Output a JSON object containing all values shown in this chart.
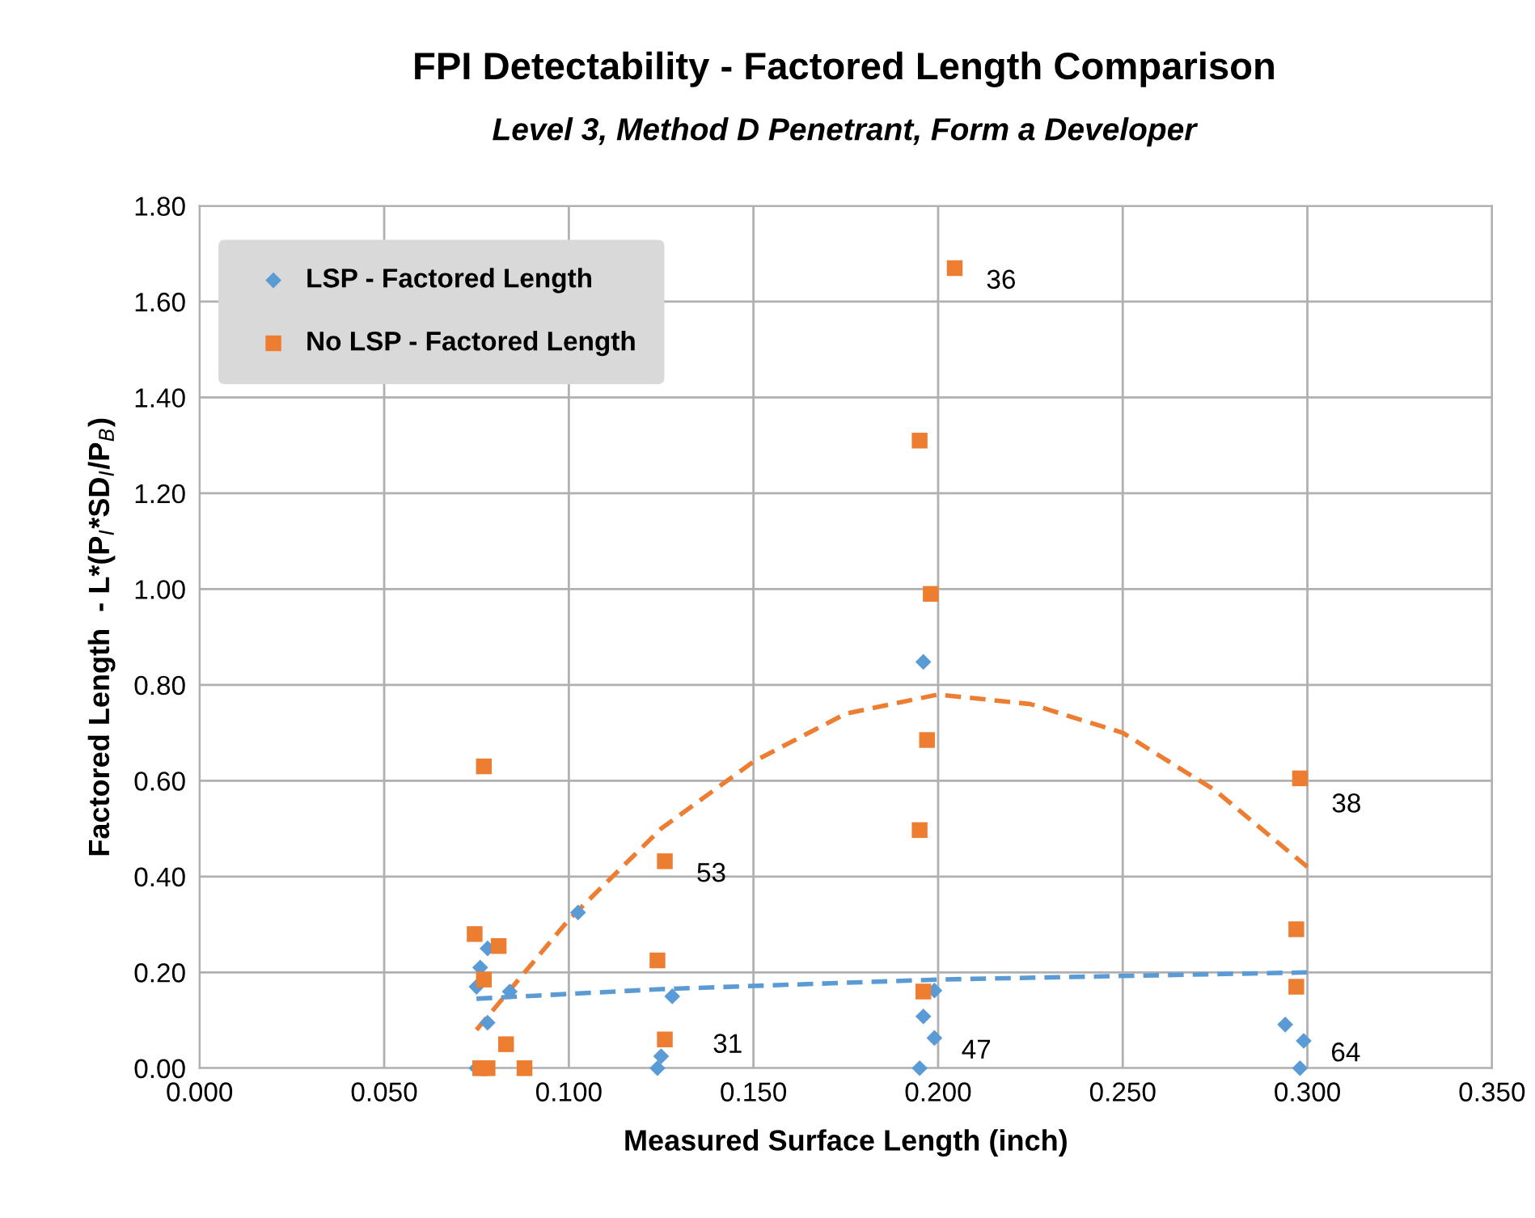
{
  "chart_data": {
    "type": "scatter",
    "title": "FPI Detectability - Factored Length Comparison",
    "subtitle": "Level 3, Method D Penetrant, Form a Developer",
    "xlabel": "Measured Surface Length (inch)",
    "ylabel": "Factored Length  - L*(P$_{I}$*SD$_{I}$/P$_{B}$)",
    "xlim": [
      0,
      0.35
    ],
    "xticks": [
      {
        "value": 0,
        "label": "0.000"
      },
      {
        "value": 0.05,
        "label": "0.050"
      },
      {
        "value": 0.1,
        "label": "0.100"
      },
      {
        "value": 0.15,
        "label": "0.150"
      },
      {
        "value": 0.2,
        "label": "0.200"
      },
      {
        "value": 0.25,
        "label": "0.250"
      },
      {
        "value": 0.3,
        "label": "0.300"
      },
      {
        "value": 0.35,
        "label": "0.350"
      }
    ],
    "ylim": [
      0,
      1.8
    ],
    "yticks": [
      {
        "value": 0,
        "label": "0.00"
      },
      {
        "value": 0.2,
        "label": "0.20"
      },
      {
        "value": 0.4,
        "label": "0.40"
      },
      {
        "value": 0.6,
        "label": "0.60"
      },
      {
        "value": 0.8,
        "label": "0.80"
      },
      {
        "value": 1.0,
        "label": "1.00"
      },
      {
        "value": 1.2,
        "label": "1.20"
      },
      {
        "value": 1.4,
        "label": "1.40"
      },
      {
        "value": 1.6,
        "label": "1.60"
      },
      {
        "value": 1.8,
        "label": "1.80"
      }
    ],
    "grid": true,
    "legend": "top left",
    "series": [
      {
        "name": "LSP - Factored Length",
        "marker": "diamond",
        "color": "#5b9bd5",
        "x": [
          0.075,
          0.076,
          0.078,
          0.078,
          0.075,
          0.084,
          0.1025,
          0.128,
          0.125,
          0.124,
          0.196,
          0.196,
          0.199,
          0.199,
          0.195,
          0.294,
          0.299,
          0.298
        ],
        "values": [
          0.17,
          0.21,
          0.25,
          0.095,
          0.0,
          0.16,
          0.325,
          0.15,
          0.025,
          0.0,
          0.848,
          0.108,
          0.162,
          0.063,
          0.0,
          0.091,
          0.057,
          0.0
        ]
      },
      {
        "name": "No LSP - Factored Length",
        "marker": "square",
        "color": "#ed7d31",
        "x": [
          0.0745,
          0.077,
          0.081,
          0.077,
          0.083,
          0.076,
          0.078,
          0.088,
          0.124,
          0.126,
          0.126,
          0.195,
          0.2045,
          0.198,
          0.197,
          0.195,
          0.196,
          0.298,
          0.297,
          0.297
        ],
        "values": [
          0.28,
          0.63,
          0.255,
          0.185,
          0.05,
          0.0,
          0.0,
          0.0,
          0.225,
          0.432,
          0.06,
          1.31,
          1.67,
          0.99,
          0.685,
          0.497,
          0.16,
          0.605,
          0.29,
          0.17
        ]
      },
      {
        "type": "line",
        "line_style": "dashed",
        "marker": "none",
        "color": "#ed7d31",
        "x": [
          0.075,
          0.1,
          0.125,
          0.15,
          0.175,
          0.2,
          0.225,
          0.25,
          0.275,
          0.3
        ],
        "values": [
          0.08,
          0.31,
          0.5,
          0.64,
          0.74,
          0.78,
          0.76,
          0.7,
          0.58,
          0.42
        ]
      },
      {
        "type": "line",
        "line_style": "dashed",
        "marker": "none",
        "color": "#5b9bd5",
        "x": [
          0.075,
          0.125,
          0.2,
          0.3
        ],
        "values": [
          0.145,
          0.165,
          0.185,
          0.2
        ]
      }
    ],
    "annotations": [
      {
        "text": "36",
        "x": 0.2045,
        "y": 1.67
      },
      {
        "text": "53",
        "x": 0.126,
        "y": 0.432
      },
      {
        "text": "31",
        "x": 0.128,
        "y": 0.15
      },
      {
        "text": "47",
        "x": 0.199,
        "y": 0.063
      },
      {
        "text": "38",
        "x": 0.298,
        "y": 0.605
      },
      {
        "text": "64",
        "x": 0.299,
        "y": 0.057
      }
    ]
  }
}
